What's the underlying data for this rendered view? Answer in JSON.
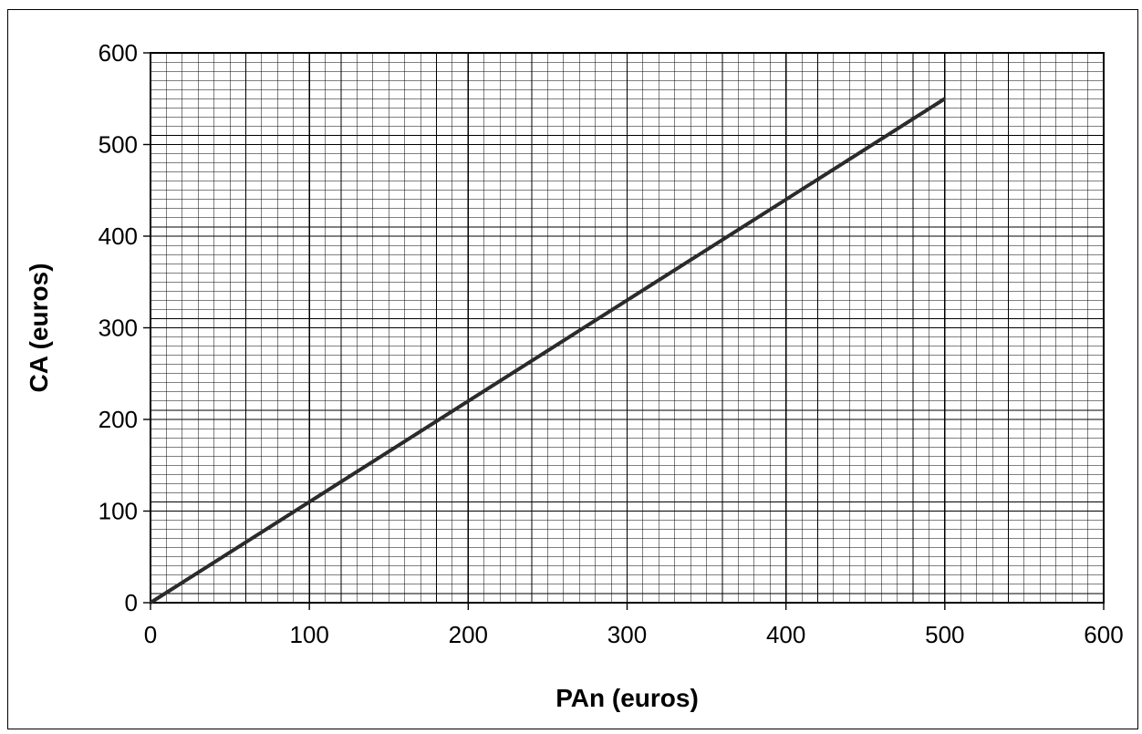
{
  "chart_data": {
    "type": "line",
    "title": "",
    "xlabel": "PAn (euros)",
    "ylabel": "CA (euros)",
    "xlim": [
      0,
      600
    ],
    "ylim": [
      0,
      600
    ],
    "x_ticks": [
      0,
      100,
      200,
      300,
      400,
      500,
      600
    ],
    "y_ticks": [
      0,
      100,
      200,
      300,
      400,
      500,
      600
    ],
    "x_tick_labels": [
      "0",
      "100",
      "200",
      "300",
      "400",
      "500",
      "600"
    ],
    "y_tick_labels": [
      "0",
      "100",
      "200",
      "300",
      "400",
      "500",
      "600"
    ],
    "grid": true,
    "grid_minor_step_x": 10,
    "grid_minor_step_y": 10,
    "legend": "none",
    "series": [
      {
        "x": [
          0,
          500
        ],
        "y": [
          0,
          550
        ],
        "color": "#2b2b2b"
      }
    ]
  }
}
